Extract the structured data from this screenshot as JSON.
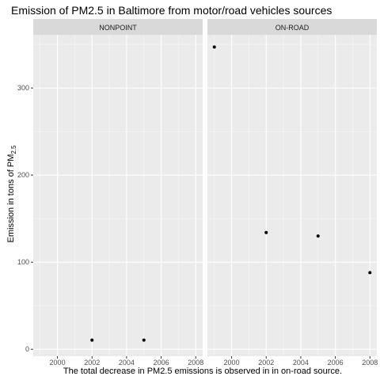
{
  "chart_data": {
    "type": "scatter",
    "title": "Emission of PM2.5 in Baltimore from motor/road vehicles sources",
    "ylabel": {
      "main": "Emission in tons of PM",
      "subscript": "2.5"
    },
    "caption": "The total decrease in PM2.5 emissions is observed in in on-road source.",
    "xlim": [
      1998.6,
      2008.4
    ],
    "ylim": [
      -8,
      361
    ],
    "x_ticks": [
      2000,
      2002,
      2004,
      2006,
      2008
    ],
    "x_tick_labels": [
      "2000",
      "2002",
      "2004",
      "2006",
      "2008"
    ],
    "y_ticks": [
      0,
      100,
      200,
      300
    ],
    "y_tick_labels": [
      "0",
      "100",
      "200",
      "300"
    ],
    "grid": true,
    "facets": [
      {
        "label": "NONPOINT",
        "points": [
          {
            "x": 2002,
            "y": 10.5
          },
          {
            "x": 2005,
            "y": 10.5
          }
        ]
      },
      {
        "label": "ON-ROAD",
        "points": [
          {
            "x": 1999,
            "y": 347
          },
          {
            "x": 2002,
            "y": 134
          },
          {
            "x": 2005,
            "y": 130
          },
          {
            "x": 2008,
            "y": 88
          }
        ]
      }
    ],
    "colors": {
      "panel_background": "#ebebeb",
      "strip_background": "#d9d9d9",
      "grid_major": "#ffffff",
      "point": "#000000",
      "tick_text": "#4d4d4d"
    }
  }
}
